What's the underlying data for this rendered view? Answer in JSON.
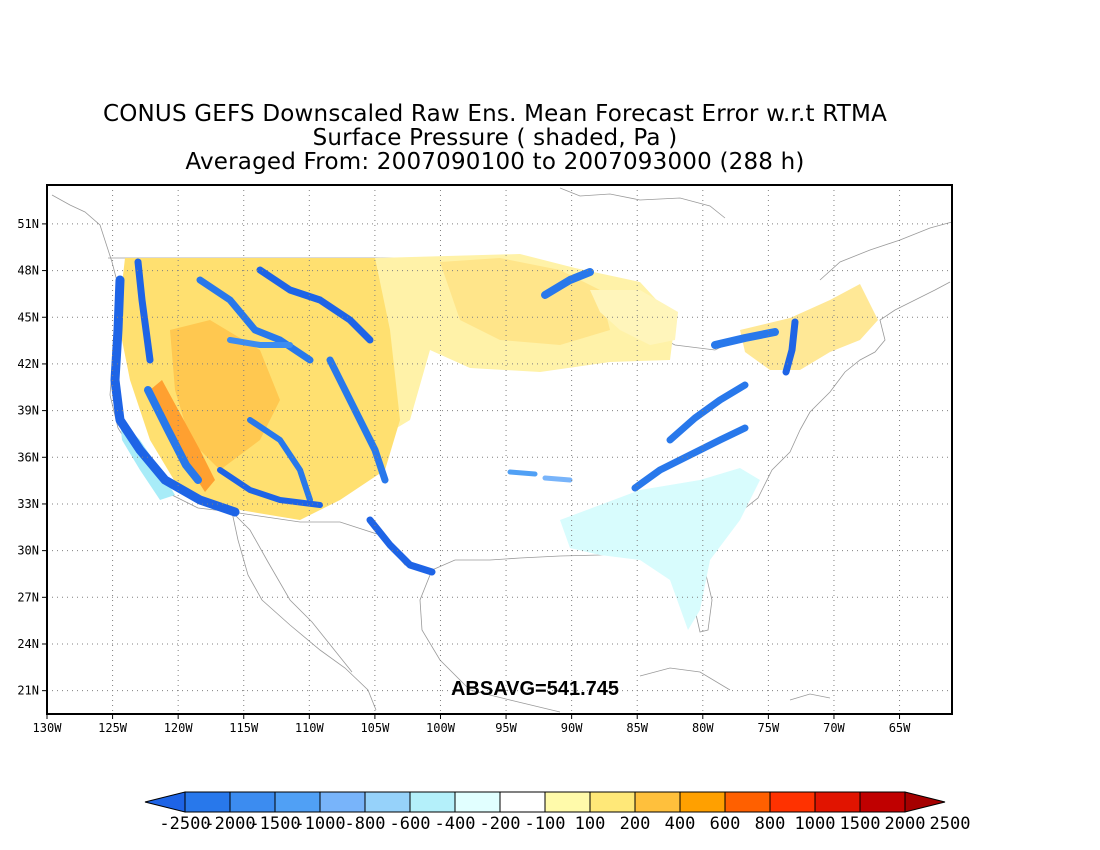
{
  "title": {
    "line1": "CONUS GEFS Downscaled Raw Ens. Mean Forecast Error w.r.t RTMA",
    "line2": "Surface Pressure ( shaded, Pa )",
    "line3": "Averaged From: 2007090100 to 2007093000 (288 h)"
  },
  "map": {
    "region": "CONUS",
    "lon_range": [
      -130,
      -61
    ],
    "lat_range": [
      19.5,
      53.5
    ],
    "lat_ticks": [
      {
        "value": 51,
        "label": "51N"
      },
      {
        "value": 48,
        "label": "48N"
      },
      {
        "value": 45,
        "label": "45N"
      },
      {
        "value": 42,
        "label": "42N"
      },
      {
        "value": 39,
        "label": "39N"
      },
      {
        "value": 36,
        "label": "36N"
      },
      {
        "value": 33,
        "label": "33N"
      },
      {
        "value": 30,
        "label": "30N"
      },
      {
        "value": 27,
        "label": "27N"
      },
      {
        "value": 24,
        "label": "24N"
      },
      {
        "value": 21,
        "label": "21N"
      }
    ],
    "lon_ticks": [
      {
        "value": -130,
        "label": "130W"
      },
      {
        "value": -125,
        "label": "125W"
      },
      {
        "value": -120,
        "label": "120W"
      },
      {
        "value": -115,
        "label": "115W"
      },
      {
        "value": -110,
        "label": "110W"
      },
      {
        "value": -105,
        "label": "105W"
      },
      {
        "value": -100,
        "label": "100W"
      },
      {
        "value": -95,
        "label": "95W"
      },
      {
        "value": -90,
        "label": "90W"
      },
      {
        "value": -85,
        "label": "85W"
      },
      {
        "value": -80,
        "label": "80W"
      },
      {
        "value": -75,
        "label": "75W"
      },
      {
        "value": -70,
        "label": "70W"
      },
      {
        "value": -65,
        "label": "65W"
      }
    ],
    "grid": true,
    "annotation": "ABSAVG=541.745"
  },
  "colorbar": {
    "colors": [
      "#1e64e6",
      "#2878eb",
      "#3c8cf0",
      "#50a0f5",
      "#78b4fa",
      "#96d2fa",
      "#b4f0fa",
      "#e1ffff",
      "#ffffff",
      "#fffaaa",
      "#ffe878",
      "#ffc03c",
      "#ffa000",
      "#ff6000",
      "#ff3200",
      "#e11400",
      "#c00000",
      "#a50000"
    ],
    "labels": [
      "-2500",
      "-2000",
      "-1500",
      "-1000",
      "-800",
      "-600",
      "-400",
      "-200",
      "-100",
      "100",
      "200",
      "400",
      "600",
      "800",
      "1000",
      "1500",
      "2000",
      "2500"
    ]
  }
}
